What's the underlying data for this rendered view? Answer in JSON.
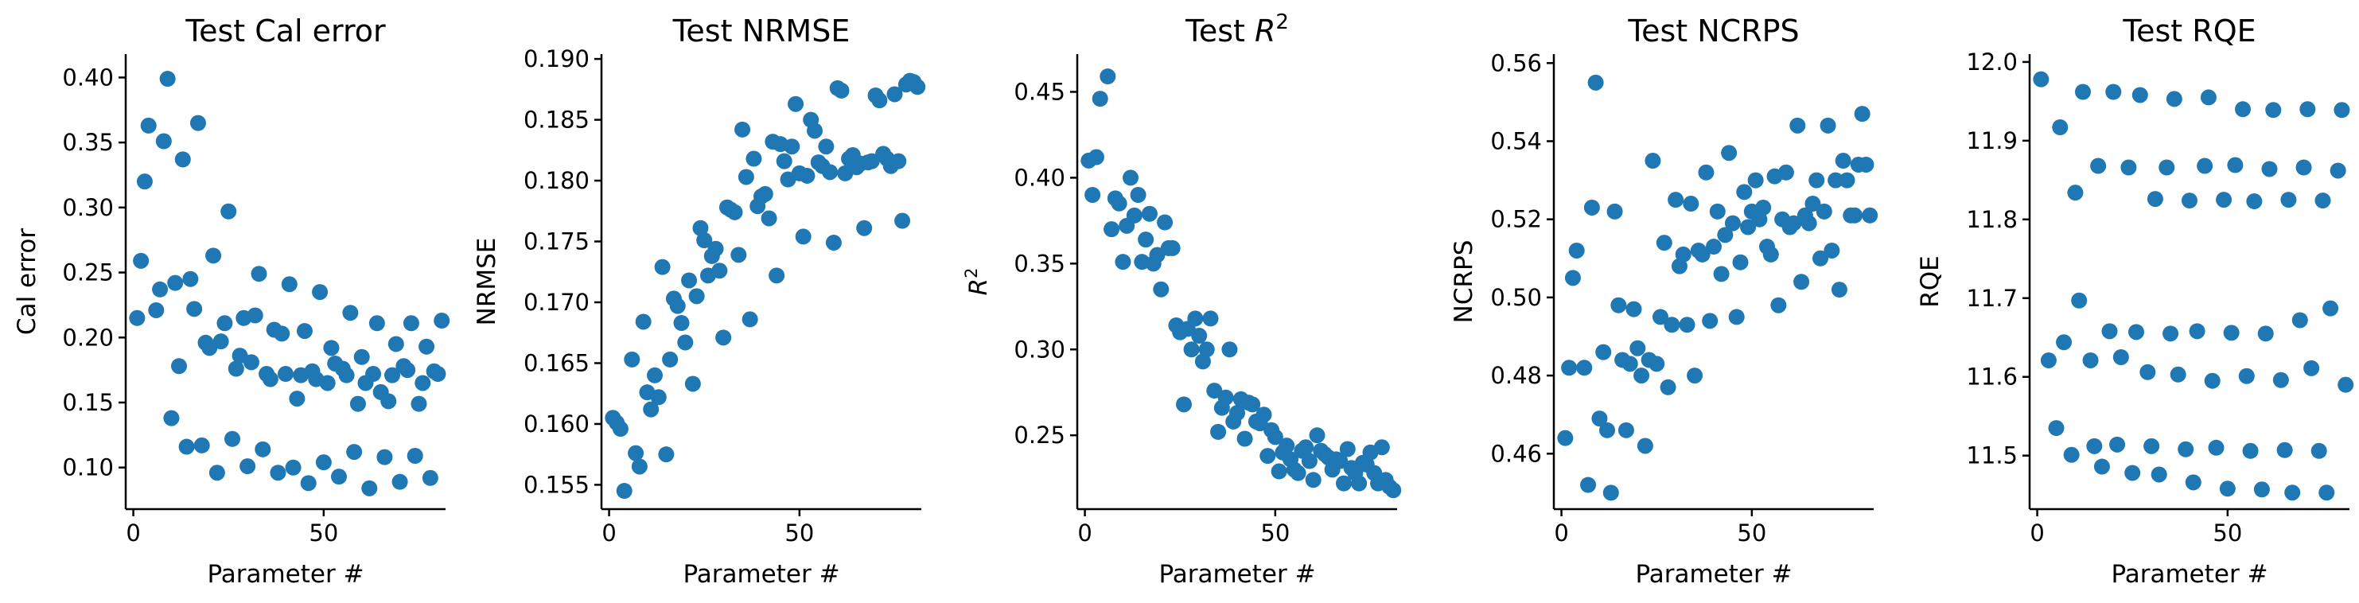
{
  "figure": {
    "marker_color": "#1f77b4"
  },
  "chart_data": [
    {
      "type": "scatter",
      "title": "Test Cal error",
      "xlabel": "Parameter #",
      "ylabel": "Cal error",
      "xlim": [
        -2,
        82
      ],
      "ylim": [
        0.068,
        0.418
      ],
      "xticks": [
        0,
        50
      ],
      "yticks": [
        0.1,
        0.15,
        0.2,
        0.25,
        0.3,
        0.35,
        0.4
      ],
      "ytick_labels": [
        "0.10",
        "0.15",
        "0.20",
        "0.25",
        "0.30",
        "0.35",
        "0.40"
      ],
      "x": [
        1,
        2,
        3,
        4,
        6,
        7,
        8,
        9,
        10,
        11,
        12,
        13,
        14,
        15,
        16,
        17,
        18,
        19,
        20,
        21,
        22,
        23,
        24,
        25,
        26,
        27,
        28,
        29,
        30,
        31,
        32,
        33,
        34,
        35,
        36,
        37,
        38,
        39,
        40,
        41,
        42,
        43,
        44,
        45,
        46,
        47,
        48,
        49,
        50,
        51,
        52,
        53,
        54,
        55,
        56,
        57,
        58,
        59,
        60,
        61,
        62,
        63,
        64,
        65,
        66,
        67,
        68,
        69,
        70,
        71,
        72,
        73,
        74,
        75,
        76,
        77,
        78,
        79,
        80,
        81
      ],
      "y": [
        0.215,
        0.259,
        0.32,
        0.363,
        0.221,
        0.237,
        0.351,
        0.399,
        0.138,
        0.242,
        0.178,
        0.337,
        0.116,
        0.245,
        0.222,
        0.365,
        0.117,
        0.196,
        0.192,
        0.263,
        0.096,
        0.197,
        0.211,
        0.297,
        0.122,
        0.176,
        0.186,
        0.215,
        0.101,
        0.181,
        0.217,
        0.249,
        0.114,
        0.172,
        0.168,
        0.206,
        0.096,
        0.203,
        0.172,
        0.241,
        0.1,
        0.153,
        0.171,
        0.205,
        0.088,
        0.174,
        0.168,
        0.235,
        0.104,
        0.165,
        0.192,
        0.18,
        0.093,
        0.176,
        0.171,
        0.219,
        0.112,
        0.149,
        0.185,
        0.165,
        0.084,
        0.172,
        0.211,
        0.158,
        0.108,
        0.151,
        0.171,
        0.195,
        0.089,
        0.178,
        0.175,
        0.211,
        0.109,
        0.149,
        0.165,
        0.193,
        0.092,
        0.174,
        0.172,
        0.213
      ]
    },
    {
      "type": "scatter",
      "title": "Test NRMSE",
      "xlabel": "Parameter #",
      "ylabel": "NRMSE",
      "xlim": [
        -2,
        82
      ],
      "ylim": [
        0.153,
        0.1904
      ],
      "xticks": [
        0,
        50
      ],
      "yticks": [
        0.155,
        0.16,
        0.165,
        0.17,
        0.175,
        0.18,
        0.185,
        0.19
      ],
      "ytick_labels": [
        "0.155",
        "0.160",
        "0.165",
        "0.170",
        "0.175",
        "0.180",
        "0.185",
        "0.190"
      ],
      "x": [
        1,
        2,
        3,
        4,
        6,
        7,
        8,
        9,
        10,
        11,
        12,
        13,
        14,
        15,
        16,
        17,
        18,
        19,
        20,
        21,
        22,
        23,
        24,
        25,
        26,
        27,
        28,
        29,
        30,
        31,
        32,
        33,
        34,
        35,
        36,
        37,
        38,
        39,
        40,
        41,
        42,
        43,
        44,
        45,
        46,
        47,
        48,
        49,
        50,
        51,
        52,
        53,
        54,
        55,
        56,
        57,
        58,
        59,
        60,
        61,
        62,
        63,
        64,
        65,
        66,
        67,
        68,
        69,
        70,
        71,
        72,
        73,
        74,
        75,
        76,
        77,
        78,
        79,
        80,
        81
      ],
      "y": [
        0.1605,
        0.1601,
        0.1596,
        0.1545,
        0.1653,
        0.1576,
        0.1565,
        0.1684,
        0.1626,
        0.1612,
        0.164,
        0.1622,
        0.1729,
        0.1575,
        0.1653,
        0.1703,
        0.1697,
        0.1683,
        0.1667,
        0.1718,
        0.1633,
        0.1705,
        0.1761,
        0.1751,
        0.1722,
        0.1738,
        0.1744,
        0.1726,
        0.1671,
        0.1778,
        0.1776,
        0.1774,
        0.1739,
        0.1842,
        0.1803,
        0.1686,
        0.1818,
        0.1779,
        0.1787,
        0.1789,
        0.1769,
        0.1832,
        0.1722,
        0.183,
        0.1816,
        0.1801,
        0.1828,
        0.1863,
        0.1806,
        0.1754,
        0.1804,
        0.185,
        0.1841,
        0.1815,
        0.1812,
        0.1828,
        0.1807,
        0.1749,
        0.1876,
        0.1874,
        0.1806,
        0.1818,
        0.1821,
        0.1811,
        0.1814,
        0.1761,
        0.1815,
        0.1816,
        0.187,
        0.1866,
        0.1822,
        0.1818,
        0.1812,
        0.1871,
        0.1816,
        0.1767,
        0.1879,
        0.1882,
        0.1881,
        0.1877
      ]
    },
    {
      "type": "scatter",
      "title_text": "Test ",
      "title_math": "R",
      "title_sup": "2",
      "xlabel": "Parameter #",
      "ylabel_math": "R",
      "ylabel_sup": "2",
      "xlim": [
        -2,
        82
      ],
      "ylim": [
        0.207,
        0.472
      ],
      "xticks": [
        0,
        50
      ],
      "yticks": [
        0.25,
        0.3,
        0.35,
        0.4,
        0.45
      ],
      "ytick_labels": [
        "0.25",
        "0.30",
        "0.35",
        "0.40",
        "0.45"
      ],
      "x": [
        1,
        2,
        3,
        4,
        6,
        7,
        8,
        9,
        10,
        11,
        12,
        13,
        14,
        15,
        16,
        17,
        18,
        19,
        20,
        21,
        22,
        23,
        24,
        25,
        26,
        27,
        28,
        29,
        30,
        31,
        32,
        33,
        34,
        35,
        36,
        37,
        38,
        39,
        40,
        41,
        42,
        43,
        44,
        45,
        46,
        47,
        48,
        49,
        50,
        51,
        52,
        53,
        54,
        55,
        56,
        57,
        58,
        59,
        60,
        61,
        62,
        63,
        64,
        65,
        66,
        67,
        68,
        69,
        70,
        71,
        72,
        73,
        74,
        75,
        76,
        77,
        78,
        79,
        80,
        81
      ],
      "y": [
        0.41,
        0.39,
        0.412,
        0.446,
        0.459,
        0.37,
        0.388,
        0.385,
        0.351,
        0.372,
        0.4,
        0.378,
        0.39,
        0.351,
        0.364,
        0.379,
        0.35,
        0.355,
        0.335,
        0.374,
        0.359,
        0.359,
        0.314,
        0.31,
        0.268,
        0.312,
        0.3,
        0.318,
        0.308,
        0.293,
        0.3,
        0.318,
        0.276,
        0.252,
        0.266,
        0.272,
        0.3,
        0.258,
        0.263,
        0.271,
        0.248,
        0.269,
        0.268,
        0.258,
        0.257,
        0.262,
        0.238,
        0.253,
        0.249,
        0.229,
        0.24,
        0.244,
        0.236,
        0.23,
        0.228,
        0.241,
        0.243,
        0.235,
        0.224,
        0.25,
        0.241,
        0.239,
        0.237,
        0.23,
        0.236,
        0.235,
        0.222,
        0.242,
        0.231,
        0.228,
        0.222,
        0.234,
        0.233,
        0.24,
        0.228,
        0.222,
        0.243,
        0.224,
        0.22,
        0.218
      ]
    },
    {
      "type": "scatter",
      "title": "Test NCRPS",
      "xlabel": "Parameter #",
      "ylabel": "NCRPS",
      "xlim": [
        -2,
        82
      ],
      "ylim": [
        0.4458,
        0.5623
      ],
      "xticks": [
        0,
        50
      ],
      "yticks": [
        0.46,
        0.48,
        0.5,
        0.52,
        0.54,
        0.56
      ],
      "ytick_labels": [
        "0.46",
        "0.48",
        "0.50",
        "0.52",
        "0.54",
        "0.56"
      ],
      "x": [
        1,
        2,
        3,
        4,
        6,
        7,
        8,
        9,
        10,
        11,
        12,
        13,
        14,
        15,
        16,
        17,
        18,
        19,
        20,
        21,
        22,
        23,
        24,
        25,
        26,
        27,
        28,
        29,
        30,
        31,
        32,
        33,
        34,
        35,
        36,
        37,
        38,
        39,
        40,
        41,
        42,
        43,
        44,
        45,
        46,
        47,
        48,
        49,
        50,
        51,
        52,
        53,
        54,
        55,
        56,
        57,
        58,
        59,
        60,
        61,
        62,
        63,
        64,
        65,
        66,
        67,
        68,
        69,
        70,
        71,
        72,
        73,
        74,
        75,
        76,
        77,
        78,
        79,
        80,
        81
      ],
      "y": [
        0.464,
        0.482,
        0.505,
        0.512,
        0.482,
        0.452,
        0.523,
        0.555,
        0.469,
        0.486,
        0.466,
        0.45,
        0.522,
        0.498,
        0.484,
        0.466,
        0.483,
        0.497,
        0.487,
        0.48,
        0.462,
        0.484,
        0.535,
        0.483,
        0.495,
        0.514,
        0.477,
        0.493,
        0.525,
        0.508,
        0.511,
        0.493,
        0.524,
        0.48,
        0.512,
        0.511,
        0.532,
        0.494,
        0.513,
        0.522,
        0.506,
        0.516,
        0.537,
        0.519,
        0.495,
        0.509,
        0.527,
        0.518,
        0.522,
        0.53,
        0.52,
        0.523,
        0.513,
        0.511,
        0.531,
        0.498,
        0.52,
        0.532,
        0.518,
        0.519,
        0.544,
        0.504,
        0.521,
        0.519,
        0.524,
        0.53,
        0.51,
        0.522,
        0.544,
        0.512,
        0.53,
        0.502,
        0.535,
        0.53,
        0.521,
        0.521,
        0.534,
        0.547,
        0.534,
        0.521
      ]
    },
    {
      "type": "scatter",
      "title": "Test RQE",
      "xlabel": "Parameter #",
      "ylabel": "RQE",
      "xlim": [
        -2,
        82
      ],
      "ylim": [
        11.432,
        12.01
      ],
      "xticks": [
        0,
        50
      ],
      "yticks": [
        11.5,
        11.6,
        11.7,
        11.8,
        11.9,
        12.0
      ],
      "ytick_labels": [
        "11.5",
        "11.6",
        "11.7",
        "11.8",
        "11.9",
        "12.0"
      ],
      "x": [
        1,
        3,
        5,
        6,
        7,
        9,
        10,
        11,
        12,
        14,
        15,
        16,
        17,
        19,
        20,
        21,
        22,
        24,
        25,
        26,
        27,
        29,
        30,
        31,
        32,
        34,
        35,
        36,
        37,
        39,
        40,
        41,
        42,
        44,
        45,
        46,
        47,
        49,
        50,
        51,
        52,
        54,
        55,
        56,
        57,
        59,
        60,
        61,
        62,
        64,
        65,
        66,
        67,
        69,
        70,
        71,
        72,
        74,
        75,
        76,
        77,
        79,
        80,
        81
      ],
      "y": [
        11.978,
        11.621,
        11.535,
        11.917,
        11.644,
        11.501,
        11.834,
        11.697,
        11.962,
        11.621,
        11.512,
        11.868,
        11.486,
        11.658,
        11.962,
        11.514,
        11.625,
        11.866,
        11.478,
        11.657,
        11.958,
        11.606,
        11.512,
        11.826,
        11.476,
        11.866,
        11.655,
        11.953,
        11.603,
        11.508,
        11.824,
        11.466,
        11.658,
        11.868,
        11.955,
        11.595,
        11.51,
        11.825,
        11.458,
        11.656,
        11.869,
        11.94,
        11.601,
        11.506,
        11.823,
        11.457,
        11.655,
        11.864,
        11.939,
        11.596,
        11.507,
        11.825,
        11.453,
        11.672,
        11.866,
        11.94,
        11.611,
        11.506,
        11.824,
        11.453,
        11.687,
        11.862,
        11.939,
        11.59
      ]
    }
  ]
}
